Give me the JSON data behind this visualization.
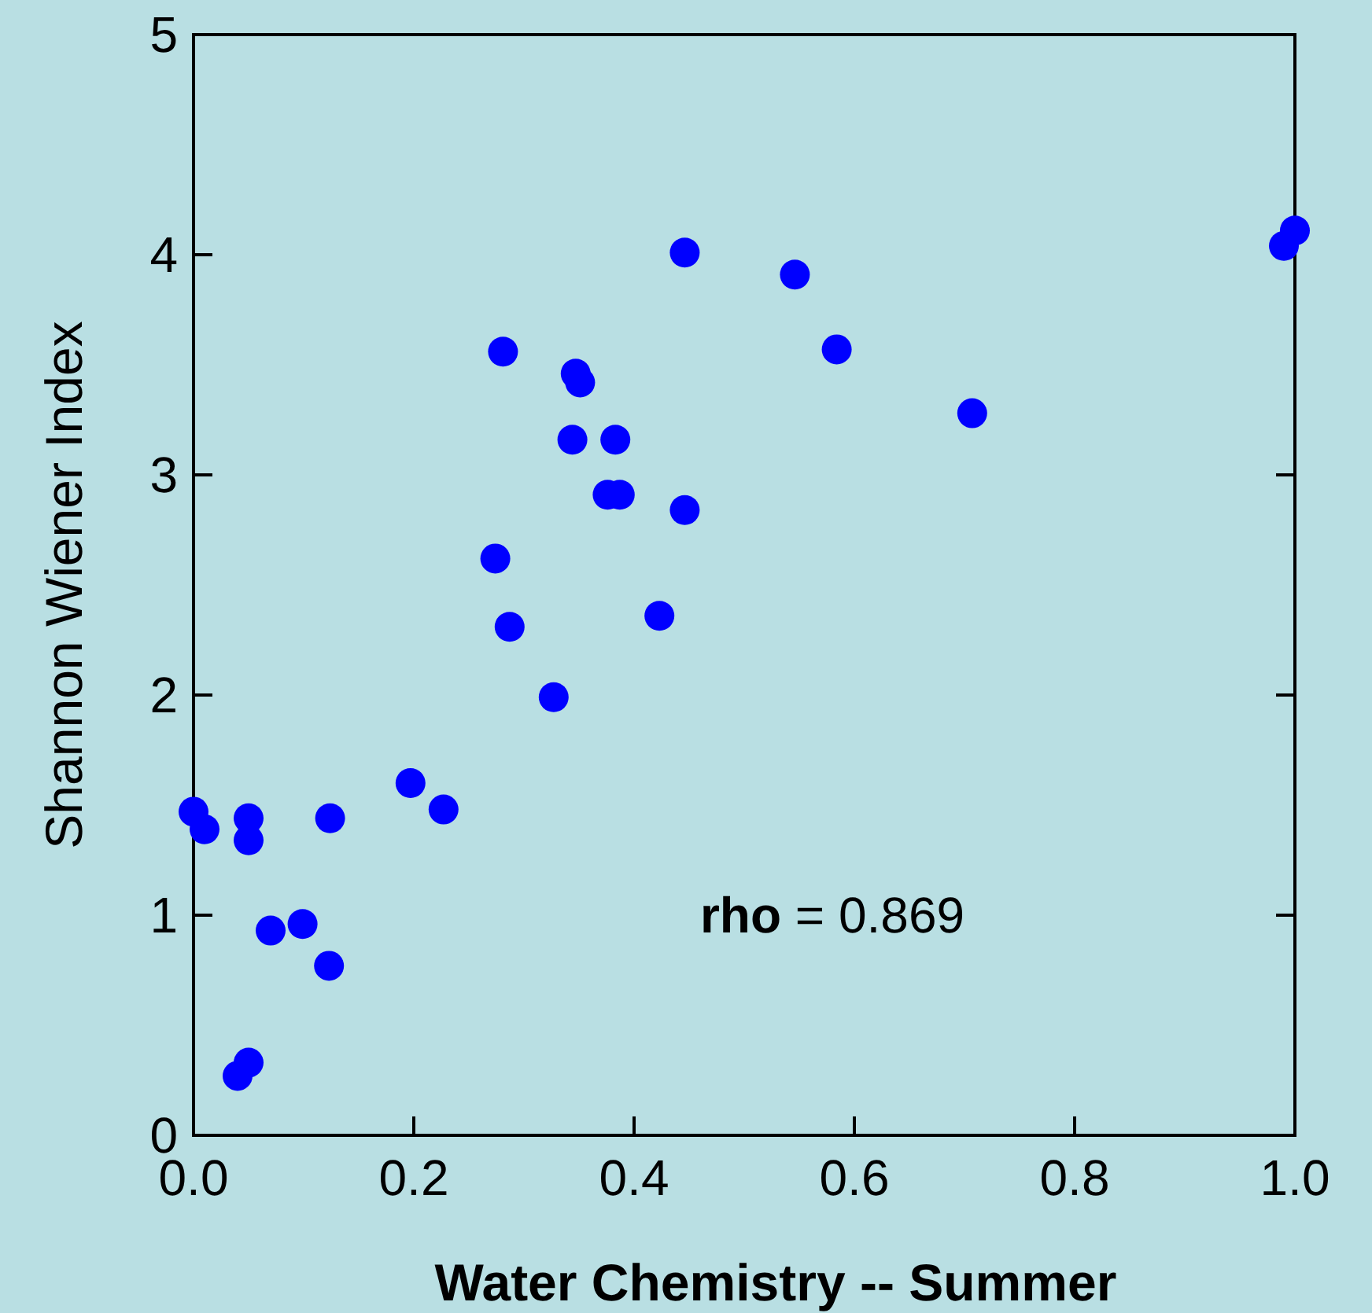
{
  "chart_data": {
    "type": "scatter",
    "xlabel": "Water Chemistry -- Summer",
    "ylabel": "Shannon Wiener Index",
    "x": [
      0.0,
      0.01,
      0.05,
      0.05,
      0.07,
      0.099,
      0.123,
      0.04,
      0.05,
      0.124,
      0.197,
      0.227,
      0.274,
      0.287,
      0.327,
      0.281,
      0.347,
      0.351,
      0.344,
      0.383,
      0.376,
      0.387,
      0.446,
      0.423,
      0.446,
      0.546,
      0.584,
      0.707,
      0.99,
      1.0
    ],
    "series": [
      {
        "color": "#0000ff",
        "values": [
          1.47,
          1.39,
          1.44,
          1.34,
          0.93,
          0.96,
          0.77,
          0.27,
          0.33,
          1.44,
          1.6,
          1.48,
          2.62,
          2.31,
          1.99,
          3.56,
          3.46,
          3.42,
          3.16,
          3.16,
          2.91,
          2.91,
          2.84,
          2.36,
          4.01,
          3.91,
          3.57,
          3.28,
          4.04,
          4.11
        ]
      }
    ],
    "xlim": [
      0,
      1
    ],
    "xticks": [
      {
        "value": 0,
        "label": "0.0"
      },
      {
        "value": 0.2,
        "label": "0.2"
      },
      {
        "value": 0.4,
        "label": "0.4"
      },
      {
        "value": 0.6,
        "label": "0.6"
      },
      {
        "value": 0.8,
        "label": "0.8"
      },
      {
        "value": 1,
        "label": "1.0"
      }
    ],
    "ylim": [
      0,
      5
    ],
    "yticks": [
      0,
      1,
      2,
      3,
      4,
      5
    ],
    "marker": "circle",
    "grid": false,
    "annotations": [
      "rho = 0.869"
    ]
  }
}
